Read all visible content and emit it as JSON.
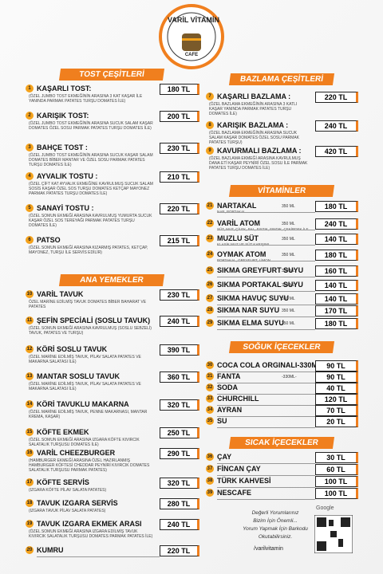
{
  "logo": {
    "name": "VARİL VİTAMİN",
    "sub": "CAFE"
  },
  "columns": [
    [
      {
        "title": "TOST ÇEŞİTLERİ",
        "items": [
          {
            "num": "1",
            "name": "KAŞARLI TOST:",
            "price": "180 TL",
            "desc": "(ÖZEL JUMBO TOST EKMEĞİNİN ARASINA 3 KAT KAŞAR İLE YANINDA PARMAK PATATES TURŞU DOMATES İLE)"
          },
          {
            "num": "2",
            "name": "KARIŞIK TOST:",
            "price": "200 TL",
            "desc": "(ÖZEL JUMBO TOST EKMEĞİNİN ARASINA SUCUK SALAM KAŞAR DOMATES ÖZEL SOSU PARMAK PATATES TURŞU DOMATES İLE)"
          },
          {
            "num": "3",
            "name": "BAHÇE TOST :",
            "price": "230 TL",
            "desc": "(ÖZEL JUMBO TOST EKMEĞİNİN ARASINA SUCUK KAŞAR SALAM DOMATES BİBER MANTAR VE ÖZEL SOSU PARMAK PATATES TURŞU DOMATES İLE)"
          },
          {
            "num": "4",
            "name": "AYVALIK TOSTU :",
            "price": "210 TL",
            "desc": "(ÖZEL ÇİFT KAT AYVALIK EKMEĞİNE KAVRULMUŞ SUCUK SALAM SOSİS KAŞAR ÖZEL SOS TURŞU DOMATES KETÇAP MAYONEZ PARMAK PATATES TURŞU DOMATES İLE)"
          },
          {
            "num": "5",
            "name": "SANAYİ TOSTU :",
            "price": "220 TL",
            "desc": "(ÖZEL SOMUN EKMEĞİ ARASINA KAVRULMUŞ YUMURTA SUCUK KAŞAR ÖZEL SOS TEREYAĞI PARMAK PATATES TURŞU DOMATES İLE)"
          },
          {
            "num": "6",
            "name": "PATSO",
            "price": "215 TL",
            "desc": "(ÖZEL SOMUN EKMEĞİ ARASINA KIZARMIŞ PATATES, KETÇAP, MAYONEZ, TURŞU İLE SERVİS EDİLİR)"
          }
        ]
      },
      {
        "title": "ANA YEMEKLER",
        "items": [
          {
            "num": "10",
            "name": "VARİL TAVUK",
            "price": "230 TL",
            "desc": "ÖZEL MARİNE EDİLMİŞ TAVUK DOMATES BİBER BAHARAT VE PATATES"
          },
          {
            "num": "11",
            "name": "ŞEFİN SPECİALİ (SOSLU TAVUK)",
            "price": "240 TL",
            "desc": "(ÖZEL SOMUN EKMEĞİ ARASINA KAVRULMUŞ (SOSLU SEBZELİ) TAVUK, PATATES VE TURŞU)"
          },
          {
            "num": "12",
            "name": "KÖRİ SOSLU TAVUK",
            "price": "390 TL",
            "desc": "(ÖZEL MARİNE EDİLMİŞ TAVUK, PİLAV SALATA PATATES VE MAKARNA SALATASI İLE)"
          },
          {
            "num": "13",
            "name": "MANTAR SOSLU TAVUK",
            "price": "360 TL",
            "desc": "(ÖZEL MARİNE EDİLMİŞ TAVUK, PİLAV SALATA PATATES VE MAKARNA SALATASI İLE)"
          },
          {
            "num": "14",
            "name": "KÖRİ TAVUKLU MAKARNA",
            "price": "320 TL",
            "desc": "(ÖZEL MARİNE EDİLMİŞ TAVUK, PENNE MAKARNASI, MANTAR KREMA, KAŞAR)"
          },
          {
            "num": "15",
            "name": "KÖFTE EKMEK",
            "price": "250 TL",
            "desc": "(ÖZEL SOMUN EKMEĞİ ARASINA IZGARA KÖFTE KIVIRCIK SALATALIK TURŞUSU DOMATES İLE)"
          },
          {
            "num": "16",
            "name": "VARİL CHEEZBURGER",
            "price": "290 TL",
            "desc": "(HAMBURGER EKMEĞİ ARASINA ÖZEL HAZIRLANMIŞ HAMBURGER KÖFTESİ CHEDDAR PEYNİRİ KIVIRCIK DOMATES SALATALIK TURŞUSU PARMAK PATATES)"
          },
          {
            "num": "17",
            "name": "KÖFTE SERVİS",
            "price": "320 TL",
            "desc": "(IZGARA KÖFTE PİLAV SALATA PATATES)"
          },
          {
            "num": "18",
            "name": "TAVUK IZGARA SERVİS",
            "price": "280 TL",
            "desc": "(IZGARA TAVUK PİLAV SALATA PATATES)"
          },
          {
            "num": "19",
            "name": "TAVUK IZGARA EKMEK ARASI",
            "price": "240 TL",
            "desc": "(ÖZEL SOMUN EKMEĞİ ARASINA IZGARA EDİLMİŞ TAVUK KIVIRCIK SALATALIK TURŞUSU DOMATES PARMAK PATATES İLE)"
          },
          {
            "num": "20",
            "name": "KUMRU",
            "price": "220 TL"
          }
        ]
      }
    ],
    [
      {
        "title": "BAZLAMA ÇEŞİTLERİ",
        "items": [
          {
            "num": "7",
            "name": "KAŞARLI BAZLAMA :",
            "price": "220 TL",
            "desc": "(ÖZEL BAZLAMA EKMEĞİNİN ARASINA 3 KATLI KAŞAR YANINDA PARMAK PATATES TURŞU DOMATES İLE)"
          },
          {
            "num": "8",
            "name": "KARIŞIK BAZLAMA :",
            "price": "240 TL",
            "desc": "(ÖZEL BAZLAMA EKMEĞİNİN ARASINA SUCUK SALAM KAŞAR DOMATES ÖZEL SOSU PARMAK PATATES TURŞU)"
          },
          {
            "num": "9",
            "name": "KAVURMALI BAZLAMA :",
            "price": "420 TL",
            "desc": "(ÖZEL BAZLAMA EKMEĞİ ARASINA KAVRULMUŞ DANA ETİ KAŞAR PEYNİRİ ÖZEL SOSU İLE PARMAK PATATES TURŞU DOMATES İLE)"
          }
        ]
      },
      {
        "title": "VİTAMİNLER",
        "items": [
          {
            "num": "21",
            "name": "NARTAKAL",
            "sub": "NAR, PORTAKAL",
            "size": "350 ML",
            "price": "180 TL"
          },
          {
            "num": "22",
            "name": "VARİL ATOM",
            "sub": "SÜT, MUZ, ÇİLEK, BAL, FISTIK, FINDIK, ÇEKİRDEK İLE",
            "size": "350 ML",
            "price": "240 TL"
          },
          {
            "num": "23",
            "name": "MUZLU SÜT",
            "sub": "KLASİK MUZ VE SÜT KARIŞIMI",
            "size": "350 ML",
            "price": "140 TL"
          },
          {
            "num": "24",
            "name": "OYMAK ATOM",
            "sub": "PORTAKAL, GREYFURT, LİMON",
            "size": "350 ML",
            "price": "180 TL"
          },
          {
            "num": "25",
            "name": "SIKMA GREYFURT SUYU",
            "size": "350 ML",
            "price": "160 TL"
          },
          {
            "num": "26",
            "name": "SIKMA PORTAKAL SUYU",
            "size": "350 ML",
            "price": "140 TL"
          },
          {
            "num": "27",
            "name": "SIKMA HAVUÇ SUYU",
            "size": "350 ML",
            "price": "140 TL"
          },
          {
            "num": "28",
            "name": "SIKMA NAR SUYU",
            "size": "350 ML",
            "price": "170 TL"
          },
          {
            "num": "29",
            "name": "SIKMA ELMA SUYU",
            "size": "350 ML",
            "price": "180 TL"
          }
        ]
      },
      {
        "title": "SOĞUK İÇECEKLER",
        "items": [
          {
            "num": "30",
            "name": "COCA COLA ORGINALI-330ML-",
            "price": "90 TL"
          },
          {
            "num": "31",
            "name": "FANTA",
            "size": "-330ML-",
            "price": "90 TL"
          },
          {
            "num": "32",
            "name": "SODA",
            "price": "40 TL"
          },
          {
            "num": "33",
            "name": "CHURCHILL",
            "price": "120 TL"
          },
          {
            "num": "34",
            "name": "AYRAN",
            "price": "70 TL"
          },
          {
            "num": "35",
            "name": "SU",
            "price": "20 TL"
          }
        ]
      },
      {
        "title": "SICAK İÇECEKLER",
        "items": [
          {
            "num": "36",
            "name": "ÇAY",
            "price": "30 TL"
          },
          {
            "num": "37",
            "name": "FİNCAN ÇAY",
            "price": "60 TL"
          },
          {
            "num": "38",
            "name": "TÜRK KAHVESİ",
            "price": "100 TL"
          },
          {
            "num": "39",
            "name": "NESCAFE",
            "price": "100 TL"
          }
        ]
      }
    ]
  ],
  "footer": {
    "lines": [
      "Değerli Yorumlarınız",
      "Bizim İçin Önemli...",
      "Yorum Yapmak İçin Barkodu",
      "Okutabilirsiniz."
    ],
    "google": "Google",
    "social": "/varilvitamin"
  }
}
